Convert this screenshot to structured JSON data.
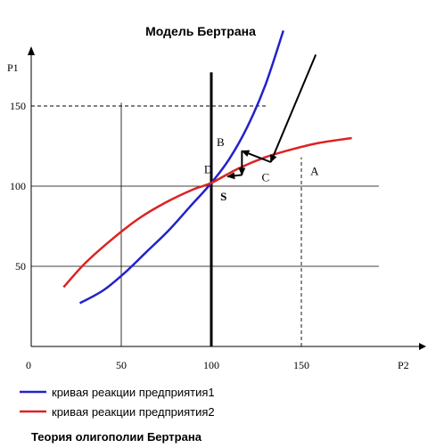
{
  "chart_data": {
    "type": "line",
    "title": "Модель Бертрана",
    "footer_title": "Теория олигополии Бертрана",
    "xlabel": "P2",
    "ylabel": "P1",
    "origin_label": "0",
    "xlim": [
      0,
      190
    ],
    "ylim": [
      0,
      185
    ],
    "x_ticks": [
      50,
      100,
      150
    ],
    "y_ticks": [
      50,
      100,
      150
    ],
    "series": [
      {
        "name": "кривая реакции предприятия1",
        "color": "#2222cc",
        "points": [
          [
            27,
            27
          ],
          [
            40,
            35
          ],
          [
            52,
            46
          ],
          [
            64,
            59
          ],
          [
            76,
            72
          ],
          [
            88,
            87
          ],
          [
            100,
            102
          ],
          [
            110,
            117
          ],
          [
            120,
            137
          ],
          [
            130,
            163
          ],
          [
            140,
            197
          ]
        ]
      },
      {
        "name": "кривая реакции предприятия2",
        "color": "#dd2222",
        "points": [
          [
            18,
            37
          ],
          [
            30,
            52
          ],
          [
            45,
            67
          ],
          [
            60,
            80
          ],
          [
            75,
            90
          ],
          [
            90,
            98
          ],
          [
            100,
            102
          ],
          [
            115,
            111
          ],
          [
            130,
            118
          ],
          [
            145,
            123
          ],
          [
            160,
            127
          ],
          [
            178,
            130
          ]
        ]
      }
    ],
    "grid_lines": {
      "vertical": [
        50,
        100,
        150
      ],
      "horizontal": [
        50,
        100,
        150
      ],
      "dashed_vertical": [
        150
      ],
      "dashed_horizontal": [
        150
      ],
      "bold_vertical": [
        100
      ]
    },
    "point_labels": [
      {
        "text": "B",
        "x": 103,
        "y": 125
      },
      {
        "text": "D",
        "x": 96,
        "y": 108
      },
      {
        "text": "C",
        "x": 128,
        "y": 103
      },
      {
        "text": "A",
        "x": 155,
        "y": 107
      },
      {
        "text": "S",
        "x": 105,
        "y": 91
      }
    ],
    "arrows": [
      {
        "from": [
          158,
          182
        ],
        "to": [
          133,
          115
        ]
      },
      {
        "from": [
          133,
          115
        ],
        "to": [
          117,
          122
        ]
      },
      {
        "from": [
          117,
          122
        ],
        "to": [
          117,
          107
        ]
      },
      {
        "from": [
          117,
          107
        ],
        "to": [
          109,
          106
        ]
      }
    ]
  }
}
